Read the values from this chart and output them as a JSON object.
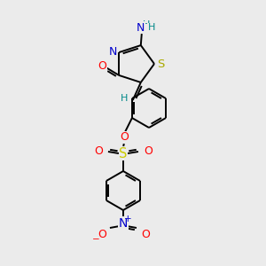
{
  "bg_color": "#ebebeb",
  "bond_color": "#000000",
  "atom_colors": {
    "N": "#0000cc",
    "O": "#ff0000",
    "S_thia": "#aaaa00",
    "S_sulf": "#cccc00",
    "H": "#008888",
    "C": "#000000"
  },
  "figsize": [
    3.0,
    3.0
  ],
  "dpi": 100,
  "bond_lw": 1.4,
  "font_size": 8.5
}
